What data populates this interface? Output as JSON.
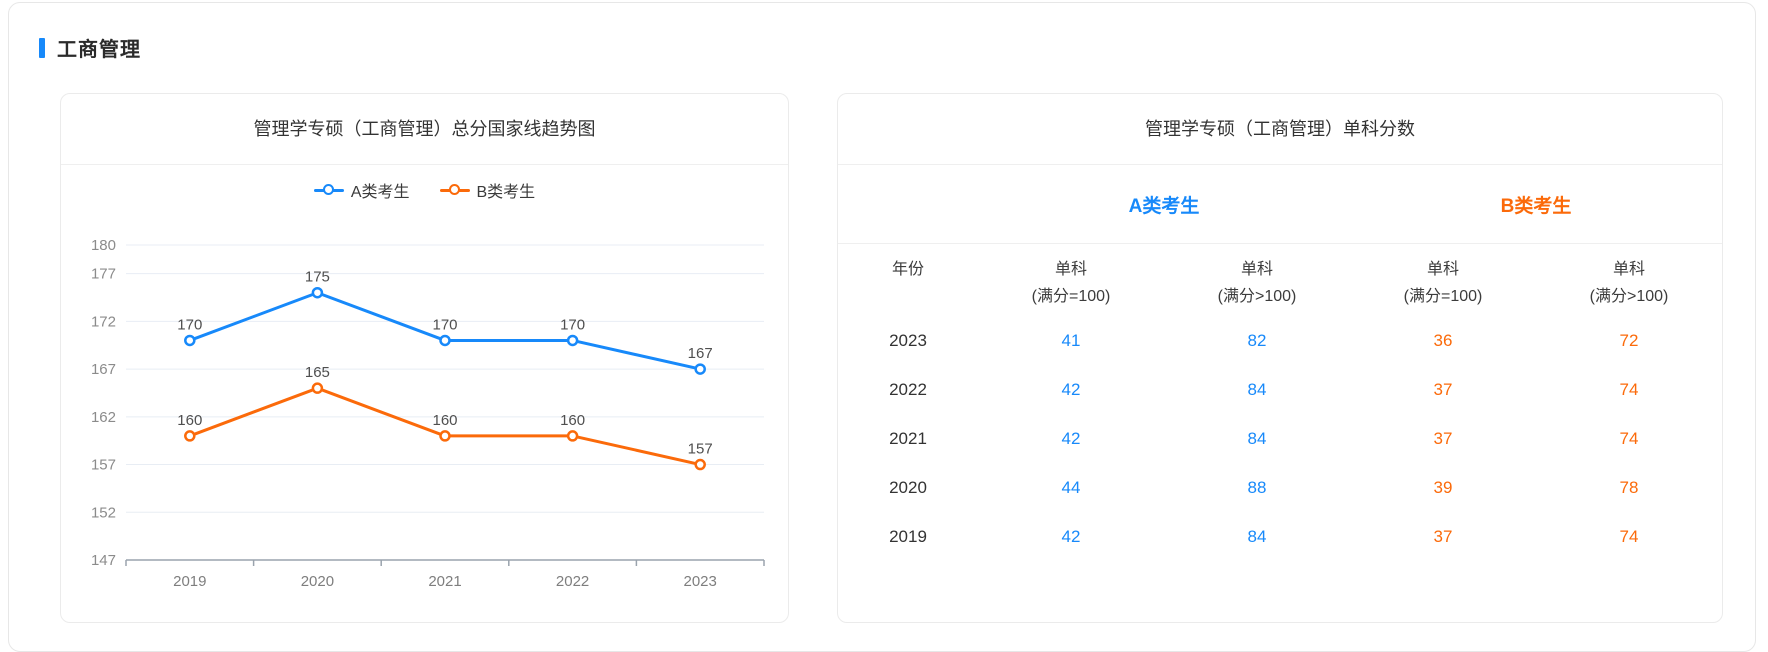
{
  "page": {
    "section_title": "工商管理"
  },
  "accent": {
    "blue": "#1789fa",
    "orange": "#fb6a0a"
  },
  "chart_data": {
    "type": "line",
    "title": "管理学专硕（工商管理）总分国家线趋势图",
    "categories": [
      "2019",
      "2020",
      "2021",
      "2022",
      "2023"
    ],
    "series": [
      {
        "name": "A类考生",
        "color": "#1789fa",
        "values": [
          170,
          175,
          170,
          170,
          167
        ]
      },
      {
        "name": "B类考生",
        "color": "#fb6a0a",
        "values": [
          160,
          165,
          160,
          160,
          157
        ]
      }
    ],
    "y_ticks": [
      147,
      152,
      157,
      162,
      167,
      172,
      177,
      180
    ],
    "ylim": [
      147,
      180
    ],
    "xlabel": "",
    "ylabel": "",
    "grid": true,
    "legend_position": "top",
    "point_labels": true
  },
  "right_card": {
    "title": "管理学专硕（工商管理）单科分数",
    "group_headers": [
      "A类考生",
      "B类考生"
    ],
    "columns": [
      {
        "title": "年份",
        "subtitle": ""
      },
      {
        "title": "单科",
        "subtitle": "(满分=100)"
      },
      {
        "title": "单科",
        "subtitle": "(满分>100)"
      },
      {
        "title": "单科",
        "subtitle": "(满分=100)"
      },
      {
        "title": "单科",
        "subtitle": "(满分>100)"
      }
    ],
    "rows": [
      {
        "year": "2023",
        "values": [
          "41",
          "82",
          "36",
          "72"
        ]
      },
      {
        "year": "2022",
        "values": [
          "42",
          "84",
          "37",
          "74"
        ]
      },
      {
        "year": "2021",
        "values": [
          "42",
          "84",
          "37",
          "74"
        ]
      },
      {
        "year": "2020",
        "values": [
          "44",
          "88",
          "39",
          "78"
        ]
      },
      {
        "year": "2019",
        "values": [
          "42",
          "84",
          "37",
          "74"
        ]
      }
    ]
  },
  "chart_style": {
    "gridline_color": "#e8edf4",
    "axis_color": "#9aa3ad",
    "y_label_color": "#8b8b8b",
    "x_label_color": "#7e7e7e",
    "value_label_color": "#4f4f4f"
  }
}
